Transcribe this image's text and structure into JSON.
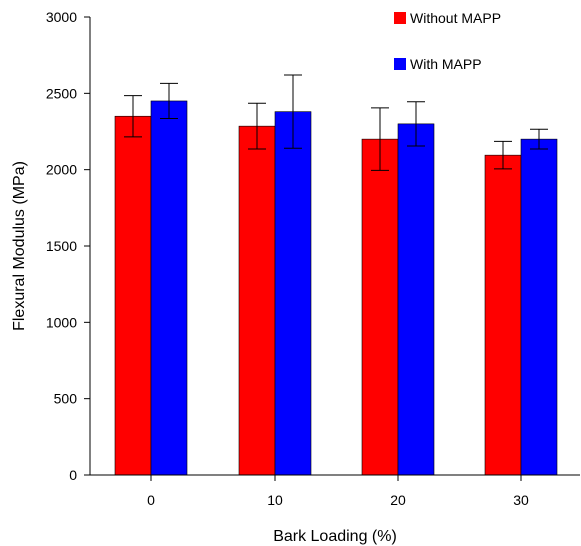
{
  "chart_data": {
    "type": "bar",
    "title": "",
    "xlabel": "Bark Loading (%)",
    "ylabel": "Flexural Modulus (MPa)",
    "categories": [
      "0",
      "10",
      "20",
      "30"
    ],
    "ylim": [
      0,
      3000
    ],
    "yticks": [
      "0",
      "500",
      "1000",
      "1500",
      "2000",
      "2500",
      "3000"
    ],
    "grid": false,
    "legend_position": "top-right",
    "series": [
      {
        "name": "Without MAPP",
        "color": "#ff0000",
        "values": [
          2350,
          2285,
          2200,
          2095
        ],
        "error": [
          135,
          150,
          205,
          90
        ]
      },
      {
        "name": "With MAPP",
        "color": "#0000ff",
        "values": [
          2450,
          2380,
          2300,
          2200
        ],
        "error": [
          115,
          240,
          145,
          65
        ]
      }
    ]
  }
}
